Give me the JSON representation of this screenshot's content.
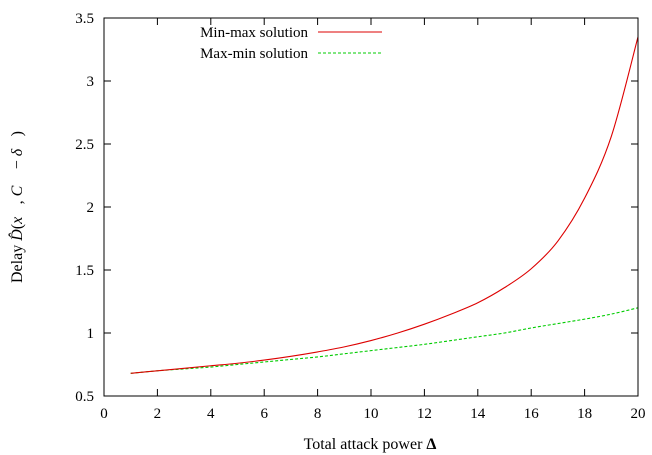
{
  "chart_data": {
    "type": "line",
    "xlabel": "Total attack power Δ",
    "ylabel": "Delay D̂(x⃗, C⃗ − δ⃗)",
    "xlim": [
      0,
      20
    ],
    "ylim": [
      0.5,
      3.5
    ],
    "xticks": [
      0,
      2,
      4,
      6,
      8,
      10,
      12,
      14,
      16,
      18,
      20
    ],
    "yticks": [
      0.5,
      1,
      1.5,
      2,
      2.5,
      3,
      3.5
    ],
    "xtick_labels": [
      "0",
      "2",
      "4",
      "6",
      "8",
      "10",
      "12",
      "14",
      "16",
      "18",
      "20"
    ],
    "ytick_labels": [
      "0.5",
      "1",
      "1.5",
      "2",
      "2.5",
      "3",
      "3.5"
    ],
    "grid": false,
    "legend": "top-left",
    "series": [
      {
        "name": "Min-max solution",
        "color": "#dd0000",
        "style": "solid",
        "x": [
          1,
          2,
          3,
          4,
          5,
          6,
          7,
          8,
          9,
          10,
          11,
          12,
          13,
          14,
          15,
          16,
          17,
          18,
          19,
          20
        ],
        "y": [
          0.68,
          0.7,
          0.72,
          0.74,
          0.76,
          0.785,
          0.815,
          0.85,
          0.89,
          0.94,
          1.0,
          1.07,
          1.15,
          1.24,
          1.36,
          1.51,
          1.73,
          2.07,
          2.56,
          3.35
        ]
      },
      {
        "name": "Max-min solution",
        "color": "#00cc00",
        "style": "dashed",
        "x": [
          1,
          2,
          3,
          4,
          5,
          6,
          7,
          8,
          9,
          10,
          11,
          12,
          13,
          14,
          15,
          16,
          17,
          18,
          19,
          20
        ],
        "y": [
          0.68,
          0.7,
          0.715,
          0.73,
          0.75,
          0.77,
          0.79,
          0.81,
          0.835,
          0.86,
          0.885,
          0.91,
          0.94,
          0.97,
          1.0,
          1.04,
          1.075,
          1.11,
          1.15,
          1.2
        ]
      }
    ]
  }
}
